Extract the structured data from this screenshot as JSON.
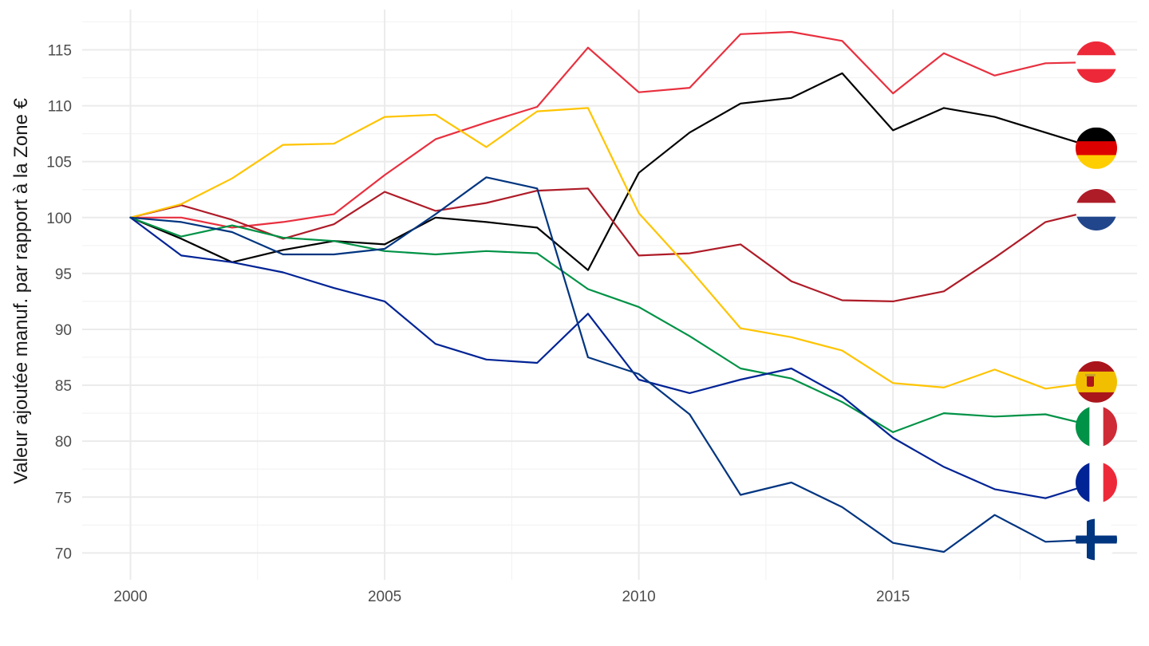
{
  "chart_data": {
    "type": "line",
    "title": "",
    "xlabel": "",
    "ylabel": "Valeur ajoutée manuf. par rapport à la Zone €",
    "xlim": [
      1999.05,
      2019.8
    ],
    "ylim": [
      67.6,
      118.6
    ],
    "x_ticks": [
      2000,
      2005,
      2010,
      2015
    ],
    "x_tick_labels": [
      "2000",
      "2005",
      "2010",
      "2015"
    ],
    "y_ticks": [
      70,
      75,
      80,
      85,
      90,
      95,
      100,
      105,
      110,
      115
    ],
    "y_tick_labels": [
      "70",
      "75",
      "80",
      "85",
      "90",
      "95",
      "100",
      "105",
      "110",
      "115"
    ],
    "grid": true,
    "legend": "flag icons at line ends (right)",
    "x": [
      2000,
      2001,
      2002,
      2003,
      2004,
      2005,
      2006,
      2007,
      2008,
      2009,
      2010,
      2011,
      2012,
      2013,
      2014,
      2015,
      2016,
      2017,
      2018,
      2019
    ],
    "series": [
      {
        "flag": "austria-flag",
        "color": "#E8303F",
        "values": [
          100,
          100,
          99.1,
          99.6,
          100.3,
          103.8,
          107.0,
          108.5,
          109.9,
          115.2,
          111.2,
          111.6,
          116.4,
          116.6,
          115.8,
          111.1,
          114.7,
          112.7,
          113.8,
          113.9
        ]
      },
      {
        "flag": "germany-flag",
        "color": "#000000",
        "values": [
          100,
          98.1,
          96.0,
          97.1,
          97.9,
          97.6,
          100.0,
          99.6,
          99.1,
          95.3,
          104.0,
          107.6,
          110.2,
          110.7,
          112.9,
          107.8,
          109.8,
          109.0,
          107.6,
          106.2
        ]
      },
      {
        "flag": "netherlands-flag",
        "color": "#AE1C28",
        "values": [
          100,
          101.1,
          99.8,
          98.1,
          99.4,
          102.3,
          100.6,
          101.3,
          102.4,
          102.6,
          96.6,
          96.8,
          97.6,
          94.3,
          92.6,
          92.5,
          93.4,
          96.4,
          99.6,
          100.7
        ]
      },
      {
        "flag": "spain-flag",
        "color": "#FFC400",
        "values": [
          100,
          101.2,
          103.5,
          106.5,
          106.6,
          109.0,
          109.2,
          106.3,
          109.5,
          109.8,
          100.4,
          95.4,
          90.1,
          89.3,
          88.1,
          85.2,
          84.8,
          86.4,
          84.7,
          85.3
        ]
      },
      {
        "flag": "italy-flag",
        "color": "#009246",
        "values": [
          100,
          98.3,
          99.3,
          98.2,
          97.9,
          97.0,
          96.7,
          97.0,
          96.8,
          93.6,
          92.0,
          89.4,
          86.5,
          85.6,
          83.5,
          80.8,
          82.5,
          82.2,
          82.4,
          81.3
        ]
      },
      {
        "flag": "france-flag",
        "color": "#002395",
        "values": [
          100,
          96.6,
          96.0,
          95.1,
          93.7,
          92.5,
          88.7,
          87.3,
          87.0,
          91.4,
          85.5,
          84.3,
          85.5,
          86.5,
          84.0,
          80.3,
          77.7,
          75.7,
          74.9,
          76.3
        ]
      },
      {
        "flag": "finland-flag",
        "color": "#003580",
        "values": [
          100,
          99.6,
          98.7,
          96.7,
          96.7,
          97.2,
          100.3,
          103.6,
          102.6,
          87.5,
          86.0,
          82.4,
          75.2,
          76.3,
          74.1,
          70.9,
          70.1,
          73.4,
          71.0,
          71.2
        ]
      }
    ]
  }
}
